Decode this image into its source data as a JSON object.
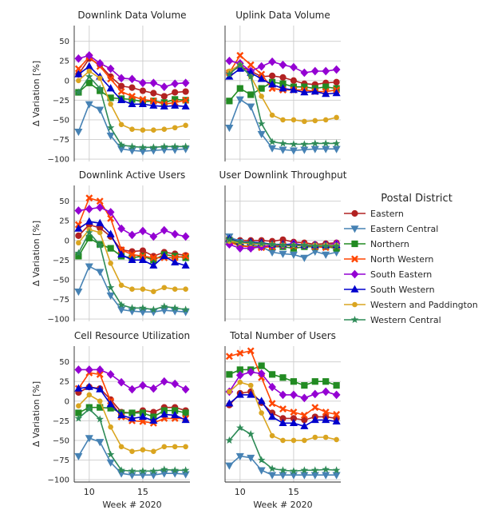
{
  "chart_data": {
    "type": "line",
    "weeks": [
      9,
      10,
      11,
      12,
      13,
      14,
      15,
      16,
      17,
      18,
      19
    ],
    "ylabel": "Δ Variation [%]",
    "xlabel": "Week # 2020",
    "ylim": [
      -103,
      70
    ],
    "xlim": [
      8.6,
      19.4
    ],
    "yticks": [
      50,
      25,
      0,
      -25,
      -50,
      -75,
      -100
    ],
    "xticks": [
      10,
      15
    ],
    "legend_title": "Postal District",
    "legend": [
      "Eastern",
      "Eastern Central",
      "Northern",
      "North Western",
      "South Eastern",
      "South Western",
      "Western and Paddington",
      "Western Central"
    ],
    "colors": {
      "Eastern": "#b22222",
      "Eastern Central": "#4682b4",
      "Northern": "#228b22",
      "North Western": "#ff4500",
      "South Eastern": "#9400d3",
      "South Western": "#0000cd",
      "Western and Paddington": "#daa520",
      "Western Central": "#2e8b57"
    },
    "panels": [
      {
        "title": "Downlink Data Volume",
        "series": {
          "Eastern": [
            8,
            28,
            20,
            5,
            -7,
            -9,
            -13,
            -16,
            -20,
            -15,
            -14
          ],
          "Eastern Central": [
            -65,
            -30,
            -37,
            -70,
            -87,
            -89,
            -90,
            -89,
            -88,
            -88,
            -87
          ],
          "Northern": [
            -15,
            -3,
            -13,
            -22,
            -23,
            -24,
            -27,
            -26,
            -28,
            -24,
            -25
          ],
          "North Western": [
            15,
            30,
            18,
            2,
            -14,
            -20,
            -24,
            -26,
            -30,
            -28,
            -25
          ],
          "South Eastern": [
            28,
            32,
            22,
            15,
            3,
            2,
            -3,
            -3,
            -8,
            -4,
            -3
          ],
          "South Western": [
            8,
            18,
            5,
            -10,
            -25,
            -30,
            -30,
            -32,
            -33,
            -32,
            -33
          ],
          "Western and Paddington": [
            0,
            12,
            3,
            -30,
            -56,
            -62,
            -63,
            -63,
            -62,
            -60,
            -57
          ],
          "Western Central": [
            -15,
            5,
            -10,
            -60,
            -82,
            -84,
            -85,
            -85,
            -84,
            -84,
            -84
          ]
        }
      },
      {
        "title": "Uplink Data Volume",
        "series": {
          "Eastern": [
            10,
            18,
            12,
            5,
            6,
            4,
            0,
            -4,
            -5,
            -3,
            -2
          ],
          "Eastern Central": [
            -60,
            -24,
            -33,
            -68,
            -86,
            -88,
            -89,
            -88,
            -87,
            -87,
            -87
          ],
          "Northern": [
            -26,
            -10,
            -18,
            -10,
            -2,
            -4,
            -8,
            -8,
            -10,
            -8,
            -10
          ],
          "North Western": [
            10,
            32,
            20,
            8,
            -10,
            -12,
            -12,
            -12,
            -14,
            -14,
            -12
          ],
          "South Eastern": [
            25,
            22,
            12,
            18,
            24,
            20,
            17,
            10,
            12,
            12,
            14
          ],
          "South Western": [
            5,
            15,
            10,
            2,
            -5,
            -10,
            -12,
            -15,
            -14,
            -17,
            -16
          ],
          "Western and Paddington": [
            12,
            20,
            5,
            -20,
            -44,
            -50,
            -50,
            -52,
            -51,
            -50,
            -47
          ],
          "Western Central": [
            8,
            20,
            5,
            -55,
            -78,
            -80,
            -81,
            -81,
            -80,
            -80,
            -80
          ]
        }
      },
      {
        "title": "Downlink Active Users",
        "series": {
          "Eastern": [
            6,
            20,
            16,
            5,
            -12,
            -14,
            -13,
            -20,
            -15,
            -17,
            -19
          ],
          "Eastern Central": [
            -65,
            -33,
            -40,
            -70,
            -88,
            -90,
            -91,
            -91,
            -89,
            -90,
            -91
          ],
          "Northern": [
            -20,
            3,
            -5,
            -10,
            -20,
            -22,
            -20,
            -25,
            -18,
            -20,
            -22
          ],
          "North Western": [
            20,
            54,
            50,
            28,
            -12,
            -18,
            -20,
            -22,
            -22,
            -22,
            -20
          ],
          "South Eastern": [
            38,
            40,
            42,
            36,
            15,
            7,
            12,
            5,
            13,
            8,
            5
          ],
          "South Western": [
            15,
            24,
            22,
            8,
            -18,
            -25,
            -25,
            -32,
            -20,
            -28,
            -32
          ],
          "Western and Paddington": [
            -3,
            14,
            10,
            -29,
            -57,
            -62,
            -62,
            -65,
            -60,
            -62,
            -62
          ],
          "Western Central": [
            -16,
            10,
            -6,
            -60,
            -82,
            -86,
            -86,
            -88,
            -84,
            -86,
            -88
          ]
        }
      },
      {
        "title": "User Downlink Throughput",
        "series": {
          "Eastern": [
            3,
            0,
            0,
            0,
            -1,
            1,
            -2,
            -3,
            -5,
            -4,
            -3
          ],
          "Eastern Central": [
            5,
            -2,
            -5,
            -8,
            -15,
            -17,
            -18,
            -22,
            -14,
            -18,
            -15
          ],
          "Northern": [
            0,
            -6,
            -8,
            -8,
            -8,
            -8,
            -10,
            -8,
            -8,
            -8,
            -10
          ],
          "North Western": [
            -2,
            -7,
            -8,
            -9,
            -8,
            -6,
            -7,
            -6,
            -8,
            -9,
            -7
          ],
          "South Eastern": [
            -5,
            -10,
            -10,
            -8,
            -6,
            -6,
            -4,
            -6,
            -6,
            -6,
            -4
          ],
          "South Western": [
            2,
            -2,
            -2,
            -3,
            -5,
            -5,
            -5,
            -6,
            -6,
            -6,
            -6
          ],
          "Western and Paddington": [
            -1,
            -3,
            -4,
            -5,
            -5,
            -6,
            -6,
            -6,
            -6,
            -6,
            -6
          ],
          "Western Central": [
            1,
            -2,
            -3,
            -4,
            -5,
            -6,
            -6,
            -6,
            -7,
            -7,
            -7
          ]
        }
      },
      {
        "title": "Cell Resource Utilization",
        "series": {
          "Eastern": [
            11,
            18,
            16,
            2,
            -14,
            -15,
            -12,
            -14,
            -8,
            -8,
            -12
          ],
          "Eastern Central": [
            -70,
            -47,
            -52,
            -78,
            -92,
            -94,
            -94,
            -94,
            -92,
            -92,
            -93
          ],
          "Northern": [
            -15,
            -8,
            -8,
            -9,
            -15,
            -15,
            -15,
            -20,
            -12,
            -12,
            -15
          ],
          "North Western": [
            16,
            36,
            34,
            0,
            -20,
            -25,
            -26,
            -28,
            -22,
            -22,
            -22
          ],
          "South Eastern": [
            40,
            40,
            40,
            34,
            24,
            15,
            20,
            16,
            25,
            22,
            15
          ],
          "South Western": [
            16,
            18,
            15,
            -4,
            -18,
            -22,
            -20,
            -25,
            -17,
            -18,
            -24
          ],
          "Western and Paddington": [
            -6,
            8,
            0,
            -33,
            -58,
            -64,
            -62,
            -64,
            -58,
            -58,
            -58
          ],
          "Western Central": [
            -22,
            -10,
            -23,
            -68,
            -88,
            -89,
            -89,
            -89,
            -87,
            -88,
            -88
          ]
        }
      },
      {
        "title": "Total Number of Users",
        "series": {
          "Eastern": [
            -5,
            10,
            12,
            -2,
            -15,
            -22,
            -22,
            -24,
            -20,
            -20,
            -22
          ],
          "Eastern Central": [
            -82,
            -70,
            -72,
            -88,
            -94,
            -94,
            -94,
            -94,
            -94,
            -94,
            -94
          ],
          "Northern": [
            34,
            40,
            40,
            45,
            34,
            30,
            25,
            20,
            25,
            25,
            20
          ],
          "North Western": [
            57,
            61,
            64,
            30,
            -3,
            -10,
            -14,
            -18,
            -8,
            -14,
            -17
          ],
          "South Eastern": [
            12,
            33,
            37,
            35,
            18,
            8,
            8,
            4,
            9,
            12,
            8
          ],
          "South Western": [
            -3,
            8,
            8,
            0,
            -20,
            -28,
            -28,
            -32,
            -24,
            -24,
            -26
          ],
          "Western and Paddington": [
            12,
            24,
            20,
            -15,
            -44,
            -50,
            -50,
            -50,
            -46,
            -46,
            -49
          ],
          "Western Central": [
            -50,
            -34,
            -42,
            -75,
            -86,
            -88,
            -89,
            -88,
            -88,
            -87,
            -88
          ]
        }
      }
    ]
  }
}
